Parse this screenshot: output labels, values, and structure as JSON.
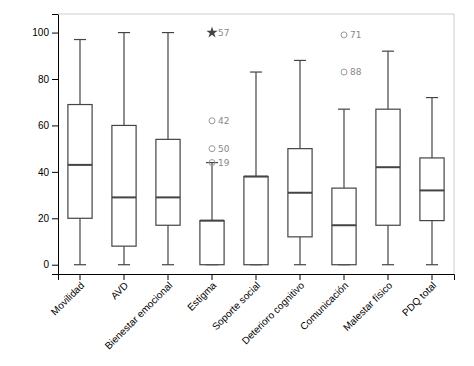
{
  "chart_data": {
    "type": "box",
    "categories": [
      "Movilidad",
      "AVD",
      "Bienestar emocional",
      "Estigma",
      "Soporte social",
      "Deterioro cognitivo",
      "Comunicación",
      "Malestar físico",
      "PDQ total"
    ],
    "boxes": [
      {
        "whislo": 0,
        "q1": 20,
        "med": 43,
        "q3": 69,
        "whishi": 97
      },
      {
        "whislo": 0,
        "q1": 8,
        "med": 29,
        "q3": 60,
        "whishi": 100
      },
      {
        "whislo": 0,
        "q1": 17,
        "med": 29,
        "q3": 54,
        "whishi": 100
      },
      {
        "whislo": 0,
        "q1": 0,
        "med": 19,
        "q3": 19,
        "whishi": 44
      },
      {
        "whislo": 0,
        "q1": 0,
        "med": 38,
        "q3": 38,
        "whishi": 83
      },
      {
        "whislo": 0,
        "q1": 12,
        "med": 31,
        "q3": 50,
        "whishi": 88
      },
      {
        "whislo": 0,
        "q1": 0,
        "med": 17,
        "q3": 33,
        "whishi": 67
      },
      {
        "whislo": 0,
        "q1": 17,
        "med": 42,
        "q3": 67,
        "whishi": 92
      },
      {
        "whislo": 0,
        "q1": 19,
        "med": 32,
        "q3": 46,
        "whishi": 72
      }
    ],
    "color": "#444444",
    "points": [
      {
        "category": "Estigma",
        "value": 100,
        "label": "57",
        "marker": "star",
        "color": "#444444"
      },
      {
        "category": "Estigma",
        "value": 62,
        "label": "42",
        "marker": "circle",
        "color": "#999999"
      },
      {
        "category": "Estigma",
        "value": 50,
        "label": "50",
        "marker": "circle",
        "color": "#999999"
      },
      {
        "category": "Estigma",
        "value": 44,
        "label": "19",
        "marker": "circle",
        "color": "#999999"
      },
      {
        "category": "Comunicación",
        "value": 99,
        "label": "71",
        "marker": "circle",
        "color": "#999999"
      },
      {
        "category": "Comunicación",
        "value": 83,
        "label": "88",
        "marker": "circle",
        "color": "#999999"
      }
    ],
    "ylim": [
      -4,
      108
    ],
    "yticks": [
      0,
      20,
      40,
      60,
      80,
      100
    ],
    "grid": false
  }
}
